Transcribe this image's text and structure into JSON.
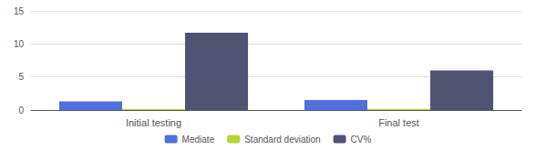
{
  "chart_data": {
    "type": "bar",
    "categories": [
      "Initial testing",
      "Final test"
    ],
    "series": [
      {
        "name": "Mediate",
        "values": [
          1.3,
          1.5
        ]
      },
      {
        "name": "Standard deviation",
        "values": [
          0.15,
          0.17
        ]
      },
      {
        "name": "CV%",
        "values": [
          11.7,
          6.0
        ]
      }
    ],
    "ylim": [
      0,
      15
    ],
    "yticks": [
      0,
      5,
      10,
      15
    ],
    "grid": true,
    "legend": "bottom"
  }
}
